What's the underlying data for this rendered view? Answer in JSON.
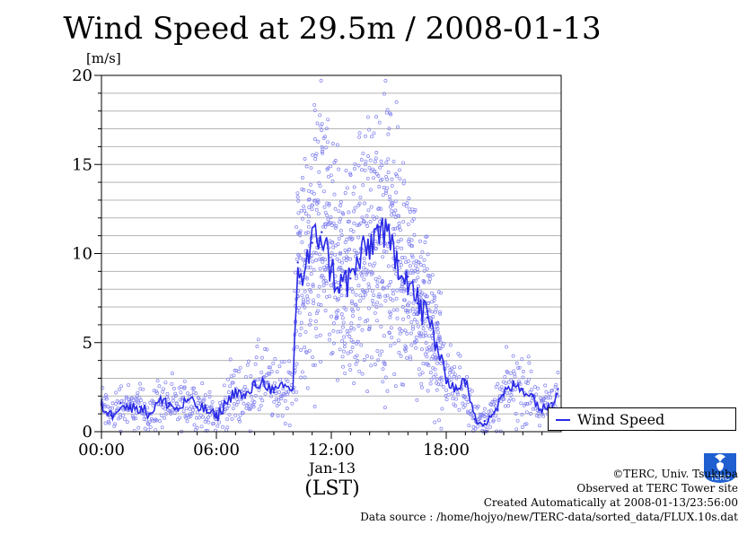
{
  "header": {
    "title": "Wind Speed at 29.5m / 2008-01-13",
    "unit_label": "[m/s]"
  },
  "legend": {
    "label": "Wind Speed"
  },
  "x_axis": {
    "date_label": "Jan-13",
    "tz_label": "(LST)"
  },
  "credits": {
    "line1": "©TERC, Univ. Tsukuba",
    "line2": "Observed at TERC Tower site",
    "line3": "Created Automatically at 2008-01-13/23:56:00",
    "line4": "Data source : /home/hojyo/new/TERC-data/sorted_data/FLUX.10s.dat"
  },
  "logo": {
    "text": "TERC",
    "icon": "terc-logo-icon"
  },
  "colors": {
    "line": "#2a2ae6",
    "scatter": "#8080f0",
    "grid": "#b4b4b4"
  },
  "chart_data": {
    "type": "line",
    "title": "Wind Speed at 29.5m / 2008-01-13",
    "ylabel": "[m/s]",
    "xlabel": "(LST)",
    "ylim": [
      0,
      20
    ],
    "xlim": [
      "00:00",
      "24:00"
    ],
    "y_ticks": [
      0,
      5,
      10,
      15,
      20
    ],
    "x_ticks": [
      "00:00",
      "06:00",
      "12:00",
      "18:00"
    ],
    "grid": true,
    "legend_position": "right",
    "series": [
      {
        "name": "Wind Speed",
        "x": [
          "00:00",
          "00:30",
          "01:00",
          "01:30",
          "02:00",
          "02:30",
          "03:00",
          "03:30",
          "04:00",
          "04:30",
          "05:00",
          "05:30",
          "06:00",
          "06:30",
          "07:00",
          "07:30",
          "08:00",
          "08:30",
          "09:00",
          "09:30",
          "10:00",
          "10:15",
          "10:30",
          "11:00",
          "11:30",
          "12:00",
          "12:30",
          "13:00",
          "13:30",
          "14:00",
          "14:30",
          "15:00",
          "15:30",
          "16:00",
          "16:30",
          "17:00",
          "17:30",
          "18:00",
          "18:30",
          "19:00",
          "19:30",
          "20:00",
          "20:30",
          "21:00",
          "21:30",
          "22:00",
          "22:30",
          "23:00",
          "23:30",
          "23:50"
        ],
        "y": [
          1.5,
          0.9,
          1.6,
          1.3,
          1.4,
          1.0,
          1.7,
          1.6,
          1.2,
          1.8,
          1.4,
          1.2,
          0.8,
          1.6,
          2.3,
          1.9,
          2.6,
          2.8,
          2.2,
          2.5,
          2.4,
          9.5,
          8.5,
          10.6,
          11.2,
          9.0,
          8.2,
          8.6,
          9.7,
          10.4,
          11.5,
          10.6,
          9.6,
          8.7,
          7.2,
          6.4,
          5.0,
          3.0,
          2.4,
          2.9,
          0.7,
          0.6,
          1.1,
          2.1,
          2.6,
          2.4,
          2.0,
          1.2,
          1.6,
          2.4
        ]
      }
    ]
  }
}
